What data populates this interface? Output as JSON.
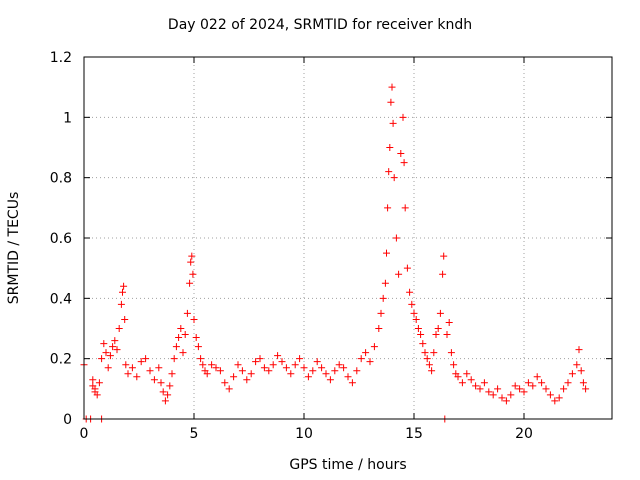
{
  "chart_data": {
    "type": "scatter",
    "title": "Day 022 of 2024, SRMTID for receiver kndh",
    "xlabel": "GPS time / hours",
    "ylabel": "SRMTID / TECUs",
    "xlim": [
      0,
      24
    ],
    "ylim": [
      0,
      1.2
    ],
    "x_ticks": [
      0,
      5,
      10,
      15,
      20
    ],
    "y_ticks": [
      0,
      0.2,
      0.4,
      0.6,
      0.8,
      1,
      1.2
    ],
    "x_tick_labels": [
      "0",
      "5",
      "10",
      "15",
      "20"
    ],
    "y_tick_labels": [
      "0",
      "0.2",
      "0.4",
      "0.6",
      "0.8",
      "1",
      "1.2"
    ],
    "grid": true,
    "marker": "+",
    "color": "#ff0000",
    "series": [
      {
        "name": "kndh",
        "x": [
          0.0,
          0.1,
          0.3,
          0.4,
          0.5,
          0.8,
          0.4,
          0.5,
          0.6,
          0.7,
          0.8,
          0.9,
          1.0,
          1.1,
          1.2,
          1.3,
          1.4,
          1.5,
          1.6,
          1.7,
          1.75,
          1.8,
          1.85,
          1.9,
          2.0,
          2.2,
          2.4,
          2.6,
          2.8,
          3.0,
          3.2,
          3.4,
          3.5,
          3.6,
          3.7,
          3.8,
          3.9,
          4.0,
          4.1,
          4.2,
          4.3,
          4.4,
          4.5,
          4.6,
          4.7,
          4.8,
          4.85,
          4.9,
          4.95,
          5.0,
          5.1,
          5.2,
          5.3,
          5.4,
          5.5,
          5.6,
          5.8,
          6.0,
          6.2,
          6.4,
          6.6,
          6.8,
          7.0,
          7.2,
          7.4,
          7.6,
          7.8,
          8.0,
          8.2,
          8.4,
          8.6,
          8.8,
          9.0,
          9.2,
          9.4,
          9.6,
          9.8,
          10.0,
          10.2,
          10.4,
          10.6,
          10.8,
          11.0,
          11.2,
          11.4,
          11.6,
          11.8,
          12.0,
          12.2,
          12.4,
          12.6,
          12.8,
          13.0,
          13.2,
          13.4,
          13.5,
          13.6,
          13.7,
          13.75,
          13.8,
          13.85,
          13.9,
          13.95,
          14.0,
          14.05,
          14.1,
          14.2,
          14.3,
          14.4,
          14.5,
          14.55,
          14.6,
          14.7,
          14.8,
          14.9,
          15.0,
          15.1,
          15.2,
          15.3,
          15.4,
          15.5,
          15.6,
          15.7,
          15.8,
          15.9,
          16.0,
          16.1,
          16.2,
          16.3,
          16.35,
          16.4,
          16.5,
          16.6,
          16.7,
          16.8,
          16.9,
          17.0,
          17.2,
          17.4,
          17.6,
          17.8,
          18.0,
          18.2,
          18.4,
          18.6,
          18.8,
          19.0,
          19.2,
          19.4,
          19.6,
          19.8,
          20.0,
          20.2,
          20.4,
          20.6,
          20.8,
          21.0,
          21.2,
          21.4,
          21.6,
          21.8,
          22.0,
          22.2,
          22.4,
          22.5,
          22.6,
          22.7,
          22.8
        ],
        "y": [
          0.18,
          0.0,
          0.0,
          0.13,
          0.09,
          0.0,
          0.11,
          0.1,
          0.08,
          0.12,
          0.2,
          0.25,
          0.22,
          0.17,
          0.21,
          0.24,
          0.26,
          0.23,
          0.3,
          0.38,
          0.42,
          0.44,
          0.33,
          0.18,
          0.15,
          0.17,
          0.14,
          0.19,
          0.2,
          0.16,
          0.13,
          0.17,
          0.12,
          0.09,
          0.06,
          0.08,
          0.11,
          0.15,
          0.2,
          0.24,
          0.27,
          0.3,
          0.22,
          0.28,
          0.35,
          0.45,
          0.52,
          0.54,
          0.48,
          0.33,
          0.27,
          0.24,
          0.2,
          0.18,
          0.16,
          0.15,
          0.18,
          0.17,
          0.16,
          0.12,
          0.1,
          0.14,
          0.18,
          0.16,
          0.13,
          0.15,
          0.19,
          0.2,
          0.17,
          0.16,
          0.18,
          0.21,
          0.19,
          0.17,
          0.15,
          0.18,
          0.2,
          0.17,
          0.14,
          0.16,
          0.19,
          0.17,
          0.15,
          0.13,
          0.16,
          0.18,
          0.17,
          0.14,
          0.12,
          0.16,
          0.2,
          0.22,
          0.19,
          0.24,
          0.3,
          0.35,
          0.4,
          0.45,
          0.55,
          0.7,
          0.82,
          0.9,
          1.05,
          1.1,
          0.98,
          0.8,
          0.6,
          0.48,
          0.88,
          1.0,
          0.85,
          0.7,
          0.5,
          0.42,
          0.38,
          0.35,
          0.33,
          0.3,
          0.28,
          0.25,
          0.22,
          0.2,
          0.18,
          0.16,
          0.22,
          0.28,
          0.3,
          0.35,
          0.48,
          0.54,
          0.0,
          0.28,
          0.32,
          0.22,
          0.18,
          0.15,
          0.14,
          0.12,
          0.15,
          0.13,
          0.11,
          0.1,
          0.12,
          0.09,
          0.08,
          0.1,
          0.07,
          0.06,
          0.08,
          0.11,
          0.1,
          0.09,
          0.12,
          0.11,
          0.14,
          0.12,
          0.1,
          0.08,
          0.06,
          0.07,
          0.1,
          0.12,
          0.15,
          0.18,
          0.23,
          0.16,
          0.12,
          0.1
        ]
      }
    ]
  }
}
